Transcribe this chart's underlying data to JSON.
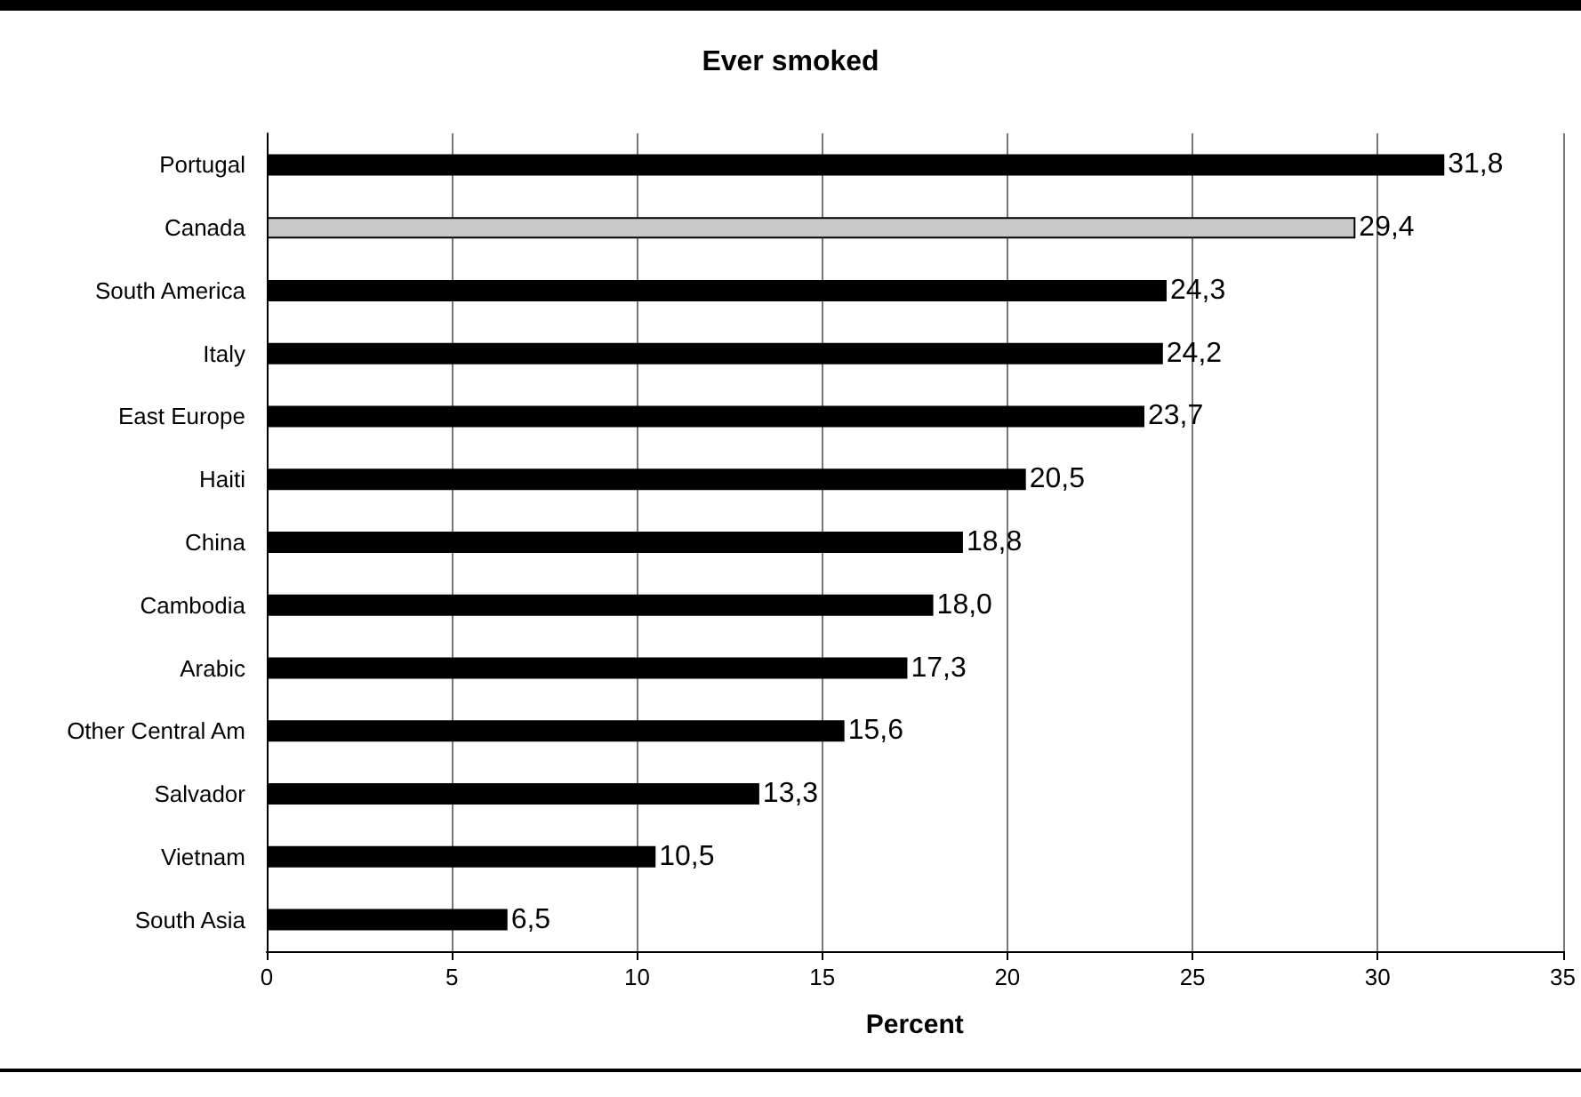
{
  "chart_data": {
    "type": "bar",
    "orientation": "horizontal",
    "title": "Ever smoked",
    "xlabel": "Percent",
    "categories": [
      "Portugal",
      "Canada",
      "South America",
      "Italy",
      "East Europe",
      "Haiti",
      "China",
      "Cambodia",
      "Arabic",
      "Other Central Am",
      "Salvador",
      "Vietnam",
      "South Asia"
    ],
    "values": [
      31.8,
      29.4,
      24.3,
      24.2,
      23.7,
      20.5,
      18.8,
      18.0,
      17.3,
      15.6,
      13.3,
      10.5,
      6.5
    ],
    "value_labels": [
      "31,8",
      "29,4",
      "24,3",
      "24,2",
      "23,7",
      "20,5",
      "18,8",
      "18,0",
      "17,3",
      "15,6",
      "13,3",
      "10,5",
      "6,5"
    ],
    "colors": [
      "#000000",
      "#c8c8c8",
      "#000000",
      "#000000",
      "#000000",
      "#000000",
      "#000000",
      "#000000",
      "#000000",
      "#000000",
      "#000000",
      "#000000",
      "#000000"
    ],
    "xlim": [
      0,
      35
    ],
    "xticks": [
      0,
      5,
      10,
      15,
      20,
      25,
      30,
      35
    ],
    "grid": "x"
  }
}
